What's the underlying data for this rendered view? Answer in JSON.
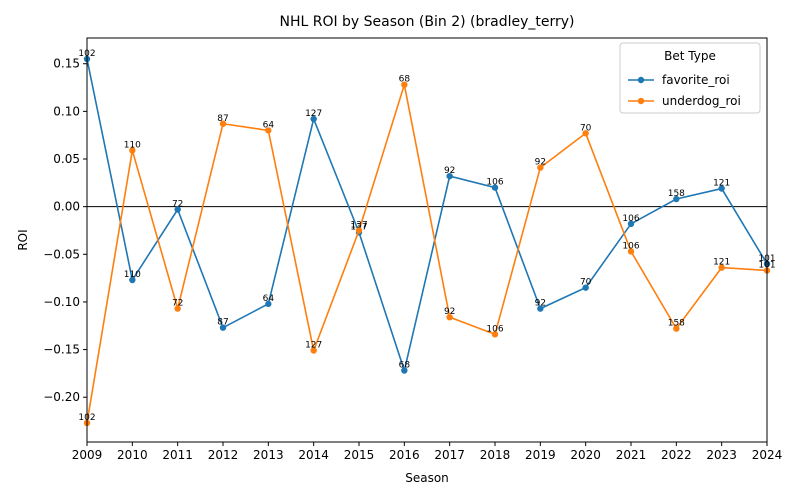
{
  "chart_data": {
    "type": "line",
    "title": "NHL ROI by Season (Bin 2) (bradley_terry)",
    "xlabel": "Season",
    "ylabel": "ROI",
    "x": [
      2009,
      2010,
      2011,
      2012,
      2013,
      2014,
      2015,
      2016,
      2017,
      2018,
      2019,
      2020,
      2021,
      2022,
      2023,
      2024
    ],
    "xlim": [
      2009,
      2024
    ],
    "ylim": [
      -0.247,
      0.177
    ],
    "yticks": [
      -0.2,
      -0.15,
      -0.1,
      -0.05,
      0.0,
      0.05,
      0.1,
      0.15
    ],
    "ytick_labels": [
      "−0.20",
      "−0.15",
      "−0.10",
      "−0.05",
      "0.00",
      "0.05",
      "0.10",
      "0.15"
    ],
    "reference_line_y": 0,
    "grid": false,
    "legend": {
      "title": "Bet Type",
      "placement": "top-right"
    },
    "series": [
      {
        "name": "favorite_roi",
        "color": "#1f77b4",
        "values": [
          0.155,
          -0.077,
          -0.003,
          -0.127,
          -0.102,
          0.092,
          -0.027,
          -0.172,
          0.032,
          0.02,
          -0.107,
          -0.085,
          -0.018,
          0.008,
          0.019,
          -0.06
        ],
        "labels": [
          "102",
          "110",
          "72",
          "87",
          "64",
          "127",
          "137",
          "68",
          "92",
          "106",
          "92",
          "70",
          "106",
          "158",
          "121",
          "101"
        ]
      },
      {
        "name": "underdog_roi",
        "color": "#ff7f0e",
        "values": [
          -0.227,
          0.059,
          -0.107,
          0.087,
          0.08,
          -0.151,
          -0.025,
          0.128,
          -0.116,
          -0.134,
          0.041,
          0.077,
          -0.047,
          -0.128,
          -0.064,
          -0.067
        ],
        "labels": [
          "102",
          "110",
          "72",
          "87",
          "64",
          "127",
          "137",
          "68",
          "92",
          "106",
          "92",
          "70",
          "106",
          "158",
          "121",
          "101"
        ]
      }
    ]
  }
}
